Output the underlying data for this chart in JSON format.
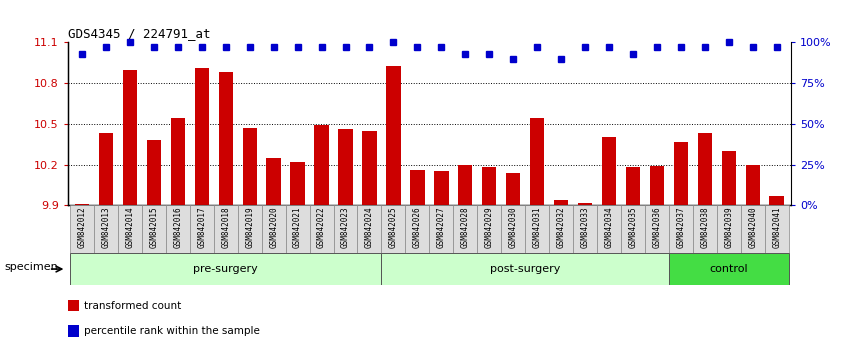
{
  "title": "GDS4345 / 224791_at",
  "samples": [
    "GSM842012",
    "GSM842013",
    "GSM842014",
    "GSM842015",
    "GSM842016",
    "GSM842017",
    "GSM842018",
    "GSM842019",
    "GSM842020",
    "GSM842021",
    "GSM842022",
    "GSM842023",
    "GSM842024",
    "GSM842025",
    "GSM842026",
    "GSM842027",
    "GSM842028",
    "GSM842029",
    "GSM842030",
    "GSM842031",
    "GSM842032",
    "GSM842033",
    "GSM842034",
    "GSM842035",
    "GSM842036",
    "GSM842037",
    "GSM842038",
    "GSM842039",
    "GSM842040",
    "GSM842041"
  ],
  "bar_values": [
    9.91,
    10.43,
    10.9,
    10.38,
    10.54,
    10.91,
    10.88,
    10.47,
    10.25,
    10.22,
    10.49,
    10.46,
    10.45,
    10.93,
    10.16,
    10.15,
    10.2,
    10.18,
    10.14,
    10.54,
    9.94,
    9.92,
    10.4,
    10.18,
    10.19,
    10.37,
    10.43,
    10.3,
    10.2,
    9.97
  ],
  "percentile_values": [
    93,
    97,
    100,
    97,
    97,
    97,
    97,
    97,
    97,
    97,
    97,
    97,
    97,
    100,
    97,
    97,
    93,
    93,
    90,
    97,
    90,
    97,
    97,
    93,
    97,
    97,
    97,
    100,
    97,
    97
  ],
  "groups": [
    {
      "label": "pre-surgery",
      "start": 0,
      "end": 13,
      "color": "#ccffcc"
    },
    {
      "label": "post-surgery",
      "start": 13,
      "end": 25,
      "color": "#ccffcc"
    },
    {
      "label": "control",
      "start": 25,
      "end": 30,
      "color": "#44dd44"
    }
  ],
  "ylim_left": [
    9.9,
    11.1
  ],
  "ylim_right": [
    0,
    100
  ],
  "yticks_left": [
    9.9,
    10.2,
    10.5,
    10.8,
    11.1
  ],
  "yticks_right": [
    0,
    25,
    50,
    75,
    100
  ],
  "ytick_labels_right": [
    "0%",
    "25%",
    "50%",
    "75%",
    "100%"
  ],
  "bar_color": "#cc0000",
  "dot_color": "#0000cc",
  "bar_width": 0.6,
  "specimen_label": "specimen",
  "legend_items": [
    {
      "color": "#cc0000",
      "label": "transformed count"
    },
    {
      "color": "#0000cc",
      "label": "percentile rank within the sample"
    }
  ]
}
